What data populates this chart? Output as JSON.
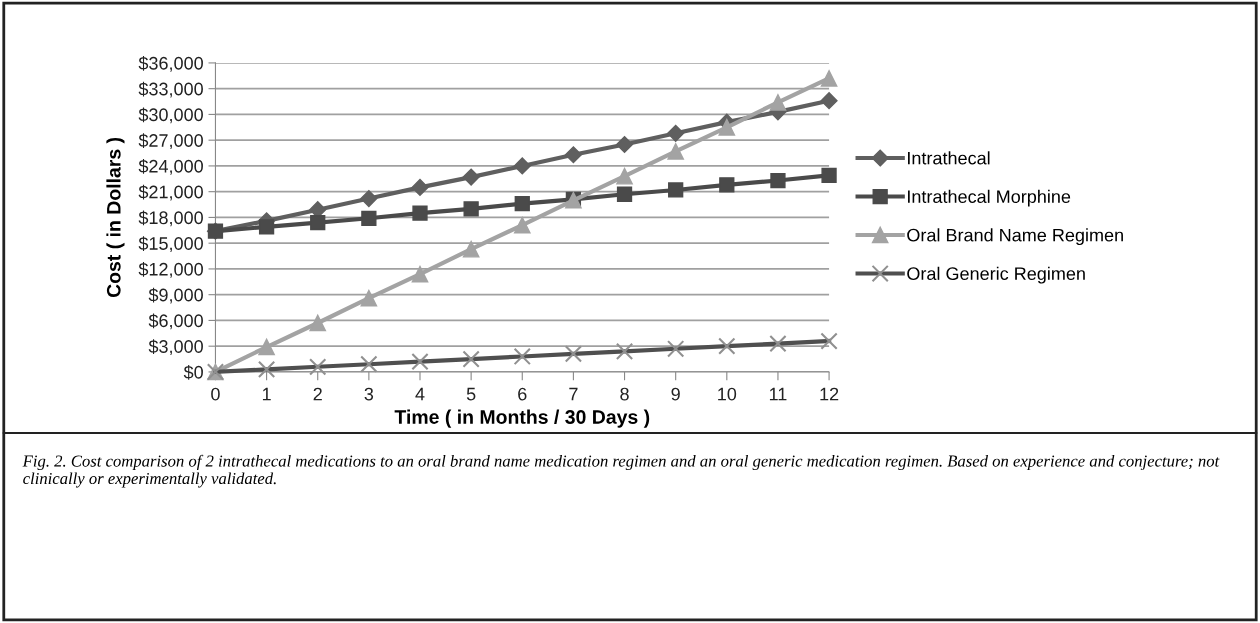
{
  "chart_data": {
    "type": "line",
    "xlabel": "Time ( in Months / 30 Days )",
    "ylabel": "Cost ( in Dollars )",
    "categories": [
      "0",
      "1",
      "2",
      "3",
      "4",
      "5",
      "6",
      "7",
      "8",
      "9",
      "10",
      "11",
      "12"
    ],
    "series": [
      {
        "name": "Intrathecal",
        "color": "#5f5f5f",
        "marker": "diamond",
        "values": [
          16400,
          17600,
          18900,
          20200,
          21500,
          22700,
          24000,
          25300,
          26500,
          27800,
          29100,
          30300,
          31600
        ]
      },
      {
        "name": "Intrathecal Morphine",
        "color": "#4a4a4a",
        "marker": "square",
        "values": [
          16400,
          16900,
          17400,
          17900,
          18500,
          19000,
          19600,
          20100,
          20700,
          21200,
          21800,
          22300,
          22900
        ]
      },
      {
        "name": "Oral Brand Name Regimen",
        "color": "#a3a3a3",
        "marker": "triangle",
        "values": [
          0,
          2900,
          5700,
          8600,
          11400,
          14300,
          17100,
          20000,
          22800,
          25700,
          28500,
          31400,
          34200
        ]
      },
      {
        "name": "Oral Generic Regimen",
        "color": "#4f4f4f",
        "marker": "cross",
        "values": [
          0,
          300,
          600,
          900,
          1200,
          1500,
          1800,
          2100,
          2400,
          2700,
          3000,
          3300,
          3600
        ]
      }
    ],
    "ylim": [
      0,
      36000
    ],
    "yticks": [
      {
        "value": 0,
        "label": "$0"
      },
      {
        "value": 3000,
        "label": "$3,000"
      },
      {
        "value": 6000,
        "label": "$6,000"
      },
      {
        "value": 9000,
        "label": "$9,000"
      },
      {
        "value": 12000,
        "label": "$12,000"
      },
      {
        "value": 15000,
        "label": "$15,000"
      },
      {
        "value": 18000,
        "label": "$18,000"
      },
      {
        "value": 21000,
        "label": "$21,000"
      },
      {
        "value": 24000,
        "label": "$24,000"
      },
      {
        "value": 27000,
        "label": "$27,000"
      },
      {
        "value": 30000,
        "label": "$30,000"
      },
      {
        "value": 33000,
        "label": "$33,000"
      },
      {
        "value": 36000,
        "label": "$36,000"
      }
    ],
    "grid": "y",
    "legend": "right",
    "line_style": "solid",
    "annotations": [
      "Fig. 2. Cost comparison of 2 intrathecal medications to an oral brand name medication regimen and an oral generic medication regimen. Based on experience and conjecture; not clinically or experimentally validated."
    ]
  }
}
